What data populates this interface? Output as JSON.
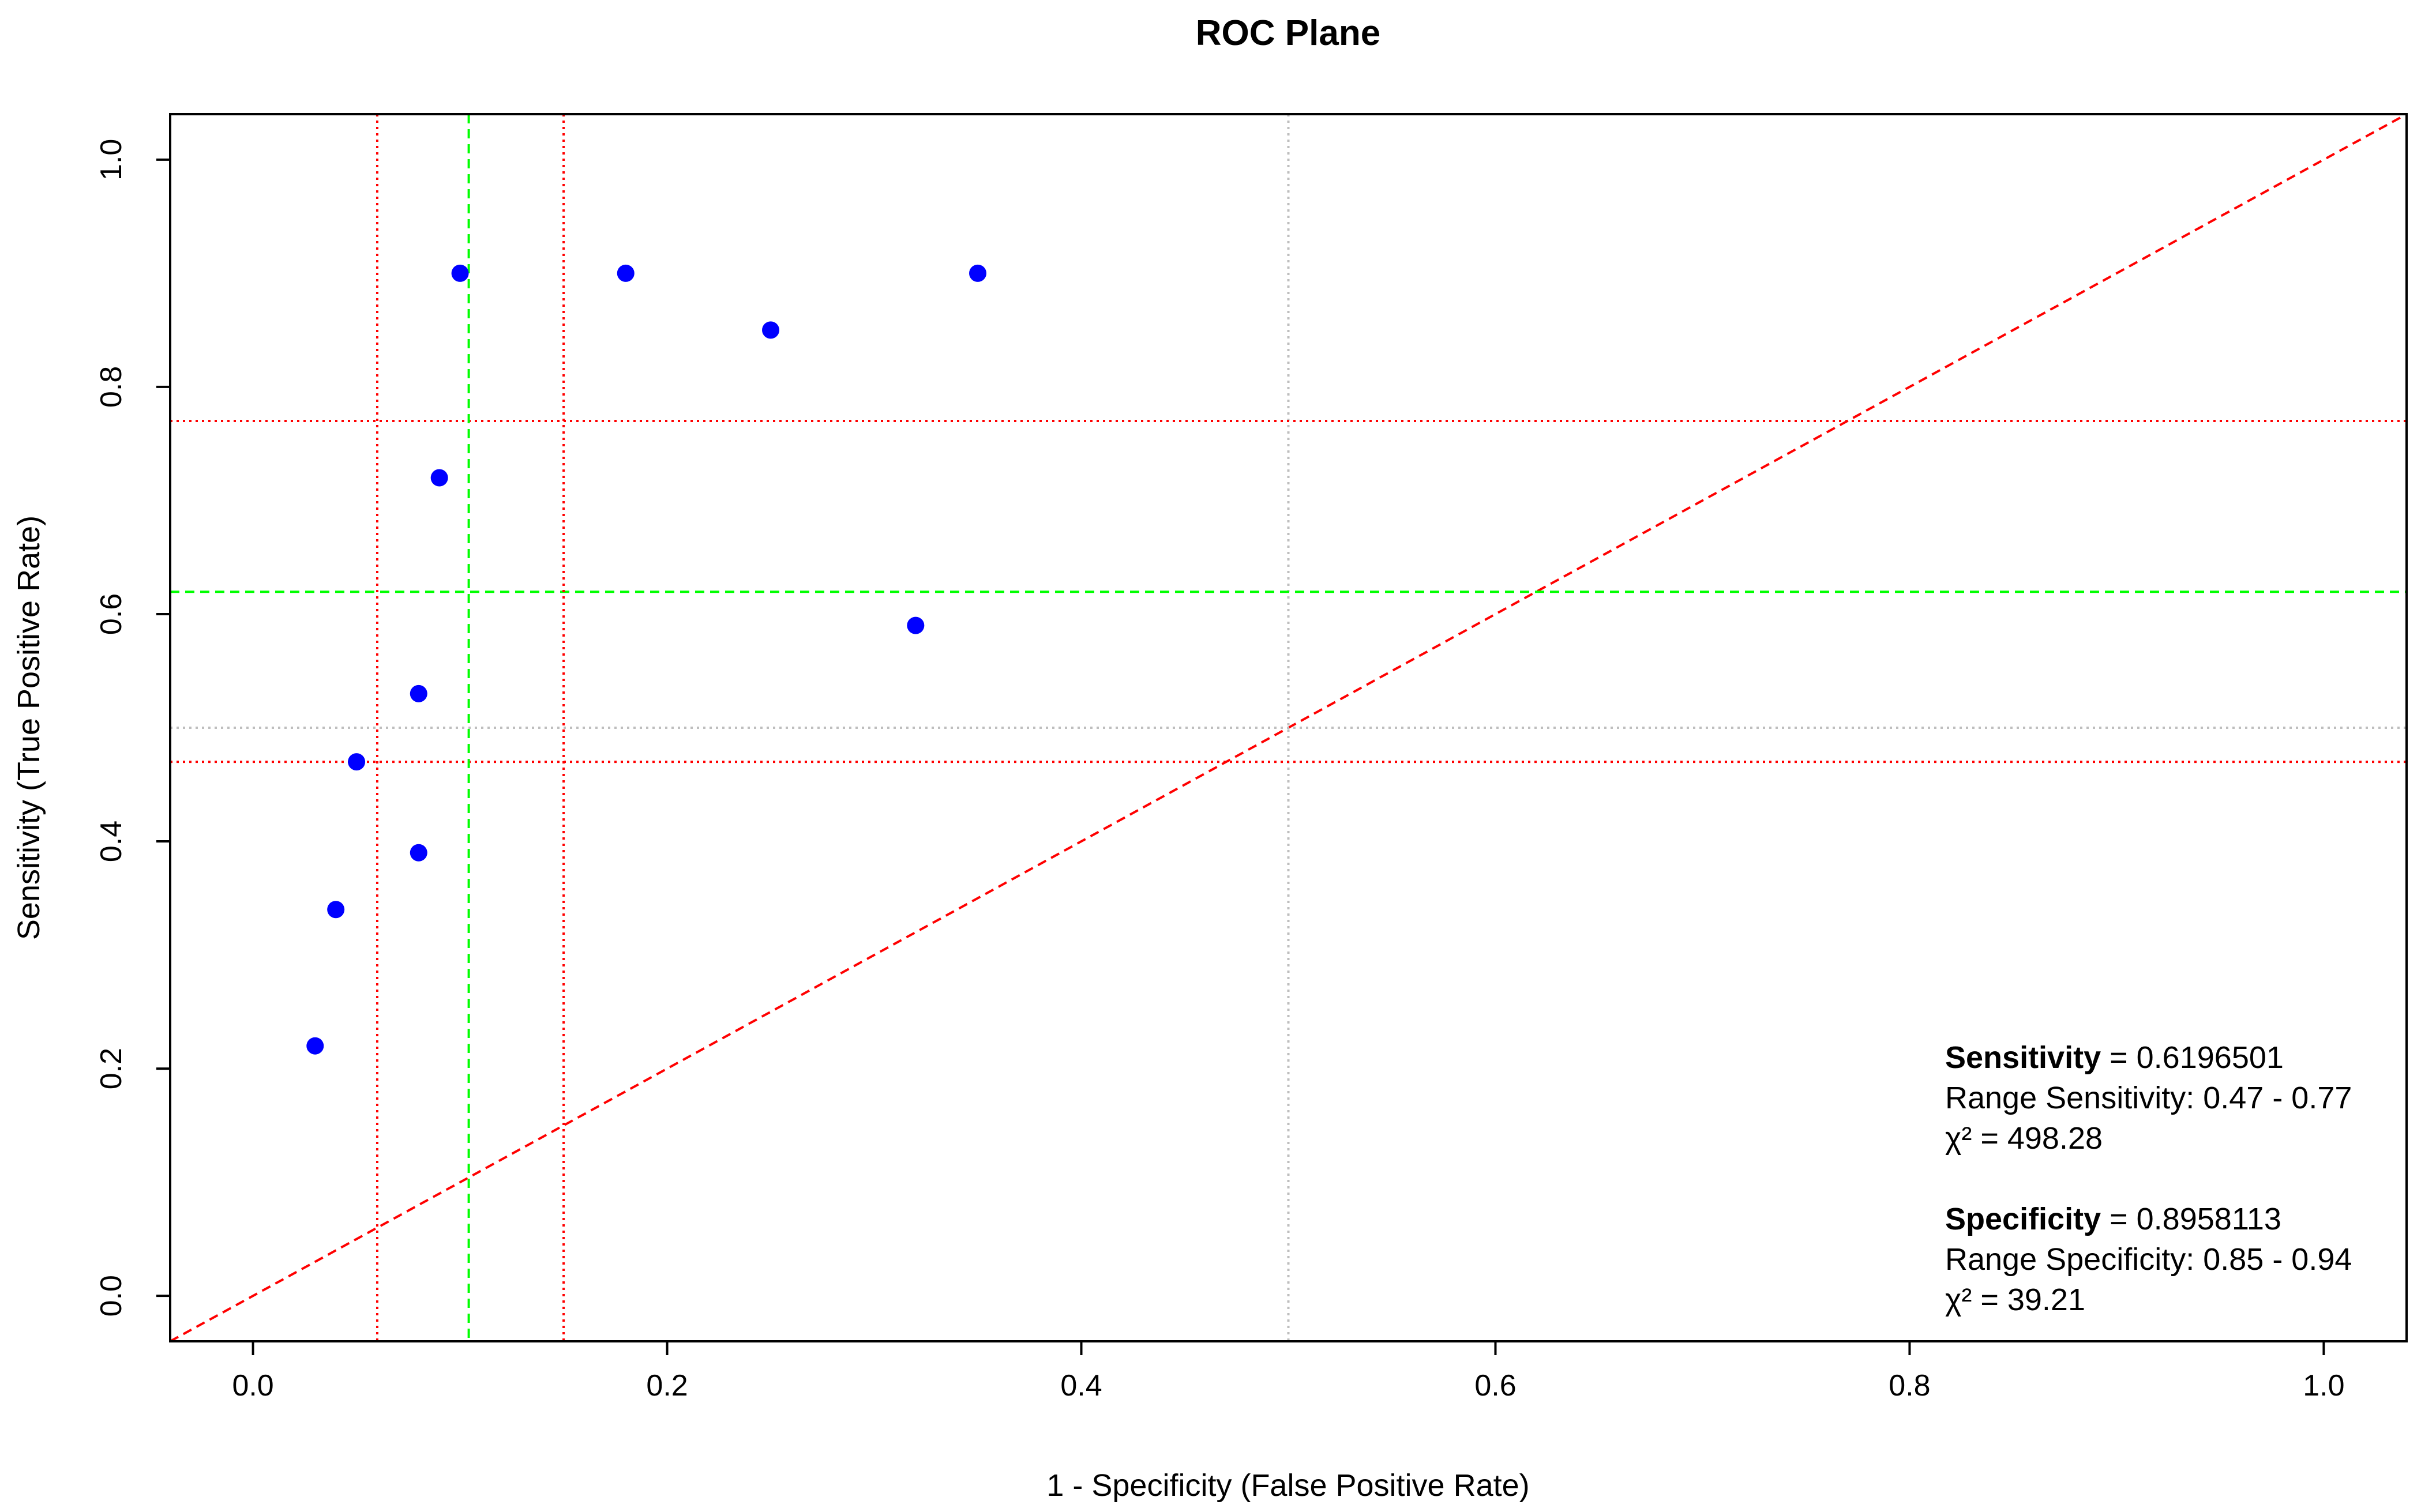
{
  "chart_data": {
    "type": "scatter",
    "title": "ROC Plane",
    "xlabel": "1 - Specificity (False Positive Rate)",
    "ylabel": "Sensitivity (True Positive Rate)",
    "xlim": [
      -0.04,
      1.04
    ],
    "ylim": [
      -0.04,
      1.04
    ],
    "x_ticks": [
      0.0,
      0.2,
      0.4,
      0.6,
      0.8,
      1.0
    ],
    "y_ticks": [
      0.0,
      0.2,
      0.4,
      0.6,
      0.8,
      1.0
    ],
    "x_tick_labels": [
      "0.0",
      "0.2",
      "0.4",
      "0.6",
      "0.8",
      "1.0"
    ],
    "y_tick_labels": [
      "0.0",
      "0.2",
      "0.4",
      "0.6",
      "0.8",
      "1.0"
    ],
    "grid": false,
    "points": [
      {
        "x": 0.03,
        "y": 0.22
      },
      {
        "x": 0.04,
        "y": 0.34
      },
      {
        "x": 0.05,
        "y": 0.47
      },
      {
        "x": 0.08,
        "y": 0.39
      },
      {
        "x": 0.08,
        "y": 0.53
      },
      {
        "x": 0.09,
        "y": 0.72
      },
      {
        "x": 0.1,
        "y": 0.9
      },
      {
        "x": 0.18,
        "y": 0.9
      },
      {
        "x": 0.25,
        "y": 0.85
      },
      {
        "x": 0.32,
        "y": 0.59
      },
      {
        "x": 0.35,
        "y": 0.9
      }
    ],
    "point_color": "#0000ff",
    "reference_lines": [
      {
        "orientation": "diagonal",
        "from": [
          -0.04,
          -0.04
        ],
        "to": [
          1.04,
          1.04
        ],
        "color": "#ff0000",
        "style": "dashed"
      },
      {
        "orientation": "vertical",
        "value": 0.5,
        "color": "#bebebe",
        "style": "dotted"
      },
      {
        "orientation": "horizontal",
        "value": 0.5,
        "color": "#bebebe",
        "style": "dotted"
      },
      {
        "orientation": "horizontal",
        "value": 0.6196501,
        "color": "#00ff00",
        "style": "dashed"
      },
      {
        "orientation": "horizontal",
        "value": 0.47,
        "color": "#ff0000",
        "style": "dotted"
      },
      {
        "orientation": "horizontal",
        "value": 0.77,
        "color": "#ff0000",
        "style": "dotted"
      },
      {
        "orientation": "vertical",
        "value": 0.1041887,
        "color": "#00ff00",
        "style": "dashed"
      },
      {
        "orientation": "vertical",
        "value": 0.06,
        "color": "#ff0000",
        "style": "dotted"
      },
      {
        "orientation": "vertical",
        "value": 0.15,
        "color": "#ff0000",
        "style": "dotted"
      }
    ],
    "annotation": {
      "position": "bottom-right",
      "lines": [
        {
          "bold": "Sensitivity",
          "text": " = 0.6196501"
        },
        {
          "bold": "",
          "text": "Range Sensitivity: 0.47 - 0.77"
        },
        {
          "bold": "",
          "text": "χ² = 498.28"
        },
        {
          "bold": "",
          "text": ""
        },
        {
          "bold": "Specificity",
          "text": " = 0.8958113"
        },
        {
          "bold": "",
          "text": "Range Specificity: 0.85 - 0.94"
        },
        {
          "bold": "",
          "text": "χ² = 39.21"
        }
      ]
    }
  }
}
